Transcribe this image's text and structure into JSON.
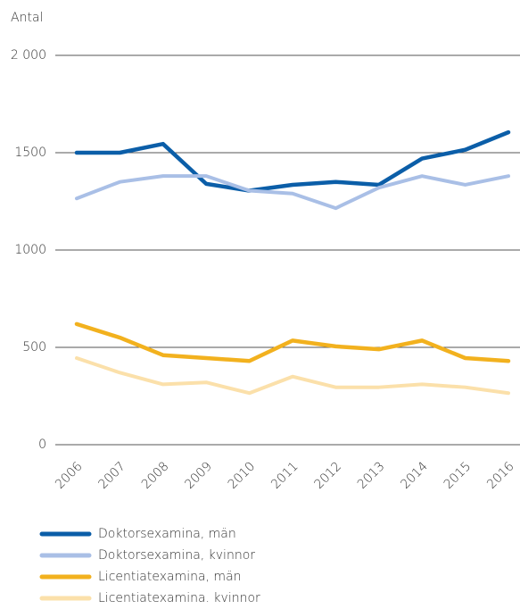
{
  "chart_data": {
    "type": "line",
    "y_label": "Antal",
    "categories": [
      "2006",
      "2007",
      "2008",
      "2009",
      "2010",
      "2011",
      "2012",
      "2013",
      "2014",
      "2015",
      "2016"
    ],
    "series": [
      {
        "name": "Doktorsexamina, män",
        "color": "#0b5ea8",
        "values": [
          1500,
          1500,
          1545,
          1340,
          1305,
          1335,
          1350,
          1335,
          1470,
          1515,
          1605
        ]
      },
      {
        "name": "Doktorsexamina, kvinnor",
        "color": "#a9bfe6",
        "values": [
          1265,
          1350,
          1380,
          1380,
          1305,
          1290,
          1215,
          1320,
          1380,
          1335,
          1380
        ]
      },
      {
        "name": "Licentiatexamina, män",
        "color": "#f2b11e",
        "values": [
          620,
          550,
          460,
          445,
          430,
          535,
          505,
          490,
          535,
          445,
          430
        ]
      },
      {
        "name": "Licentiatexamina. kvinnor",
        "color": "#fbe0aa",
        "values": [
          445,
          370,
          310,
          320,
          265,
          350,
          295,
          295,
          310,
          295,
          265
        ]
      }
    ],
    "ylim": [
      0,
      2000
    ],
    "yticks": [
      0,
      500,
      1000,
      1500,
      {
        "value": 2000,
        "label": "2 000"
      }
    ],
    "grid": true
  }
}
